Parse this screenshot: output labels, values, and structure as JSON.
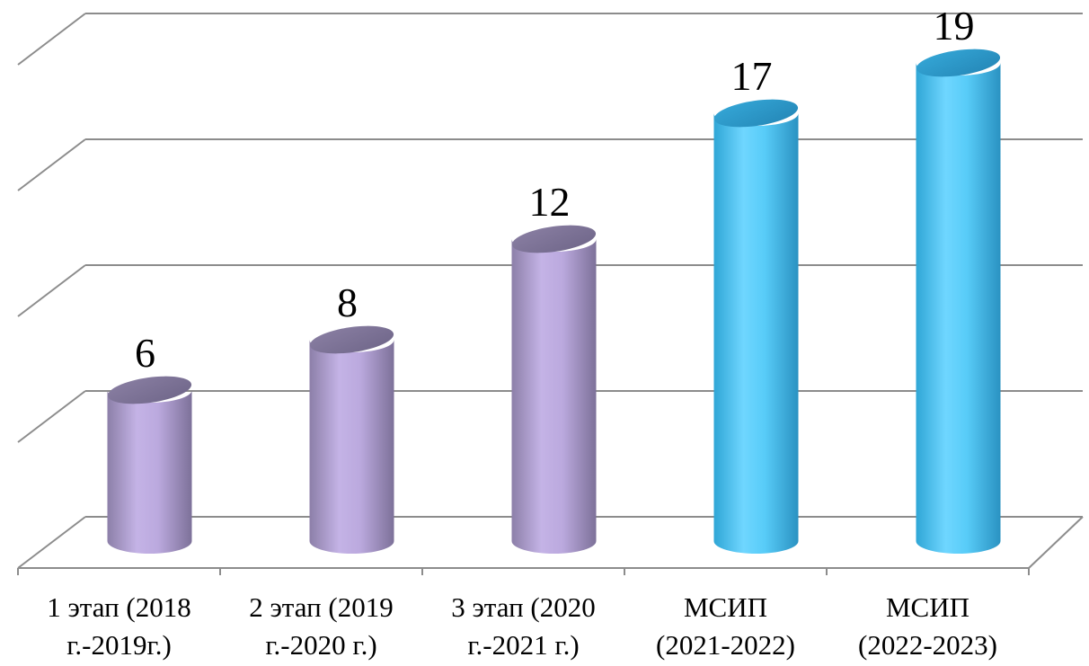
{
  "chart_data": {
    "type": "bar",
    "style": "3d-cylinder",
    "categories": [
      {
        "line1": "1 этап (2018",
        "line2": "г.-2019г.)"
      },
      {
        "line1": "2 этап (2019",
        "line2": "г.-2020 г.)"
      },
      {
        "line1": "3 этап (2020",
        "line2": "г.-2021 г.)"
      },
      {
        "line1": "МСИП",
        "line2": "(2021-2022)"
      },
      {
        "line1": "МСИП",
        "line2": "(2022-2023)"
      }
    ],
    "values": [
      6,
      8,
      12,
      17,
      19
    ],
    "bar_colors": [
      "#b3a2d3",
      "#b3a2d3",
      "#b3a2d3",
      "#4cc4f0",
      "#4cc4f0"
    ],
    "ylim": [
      0,
      20
    ],
    "grid": true,
    "legend": "none",
    "axis_tick_labels_y": false
  }
}
